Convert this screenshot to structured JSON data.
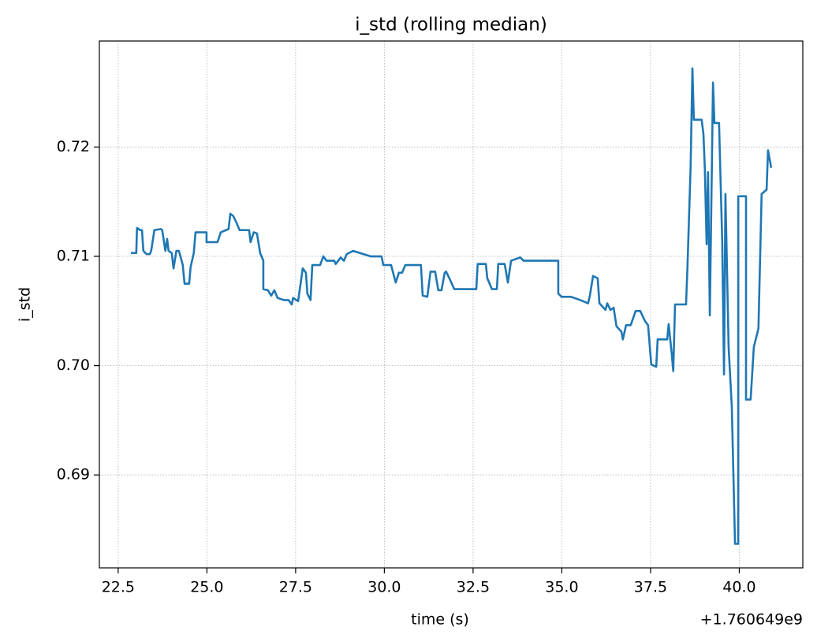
{
  "chart_data": {
    "type": "line",
    "title": "i_std (rolling median)",
    "x_label": "time (s)",
    "y_label": "i_std",
    "x_offset_label": "+1.760649e9",
    "xlim": [
      21.97,
      41.79
    ],
    "ylim": [
      0.6815,
      0.7297
    ],
    "xticks": [
      22.5,
      {
        "value": 25,
        "label": "25.0"
      },
      27.5,
      {
        "value": 30,
        "label": "30.0"
      },
      32.5,
      {
        "value": 35,
        "label": "35.0"
      },
      37.5,
      {
        "value": 40,
        "label": "40.0"
      }
    ],
    "yticks": [
      0.69,
      {
        "value": 0.7,
        "label": "0.70"
      },
      0.71,
      0.72
    ],
    "grid": true,
    "series": [
      {
        "name": "i_std",
        "color": "#1f77b4",
        "x": [
          22.86,
          23.01,
          23.03,
          23.12,
          23.17,
          23.21,
          23.3,
          23.39,
          23.43,
          23.52,
          23.7,
          23.74,
          23.83,
          23.88,
          23.92,
          24.01,
          24.06,
          24.14,
          24.21,
          24.23,
          24.32,
          24.37,
          24.5,
          24.54,
          24.63,
          24.68,
          24.99,
          24.99,
          25.3,
          25.39,
          25.61,
          25.66,
          25.74,
          25.83,
          25.92,
          26.19,
          26.23,
          26.32,
          26.41,
          26.5,
          26.59,
          26.59,
          26.72,
          26.81,
          26.9,
          26.99,
          27.17,
          27.3,
          27.39,
          27.43,
          27.57,
          27.7,
          27.79,
          27.83,
          27.92,
          27.97,
          28.19,
          28.28,
          28.37,
          28.59,
          28.63,
          28.77,
          28.86,
          28.94,
          29.12,
          29.61,
          29.92,
          29.97,
          30.19,
          30.32,
          30.41,
          30.5,
          30.59,
          31.03,
          31.08,
          31.21,
          31.3,
          31.43,
          31.52,
          31.61,
          31.7,
          31.74,
          31.83,
          31.97,
          32.59,
          32.63,
          32.86,
          32.9,
          33.03,
          33.17,
          33.21,
          33.39,
          33.48,
          33.57,
          33.83,
          33.92,
          34.72,
          34.9,
          34.9,
          34.99,
          35.26,
          35.52,
          35.74,
          35.79,
          35.88,
          36.01,
          36.06,
          36.23,
          36.28,
          36.37,
          36.46,
          36.54,
          36.68,
          36.72,
          36.81,
          36.94,
          37.08,
          37.21,
          37.34,
          37.43,
          37.52,
          37.66,
          37.7,
          37.97,
          38.01,
          38.1,
          38.14,
          38.19,
          38.5,
          38.54,
          38.63,
          38.68,
          38.72,
          38.94,
          38.99,
          39.03,
          39.08,
          39.12,
          39.17,
          39.26,
          39.3,
          39.43,
          39.52,
          39.57,
          39.61,
          39.7,
          39.79,
          39.88,
          39.97,
          39.97,
          40.19,
          40.19,
          40.32,
          40.41,
          40.54,
          40.63,
          40.77,
          40.81,
          40.9
        ],
        "values": [
          0.7103,
          0.7103,
          0.7126,
          0.7124,
          0.7124,
          0.7105,
          0.7102,
          0.7102,
          0.7105,
          0.7124,
          0.7125,
          0.7124,
          0.7105,
          0.7116,
          0.7105,
          0.7103,
          0.7089,
          0.7105,
          0.7105,
          0.7103,
          0.7092,
          0.7075,
          0.7075,
          0.709,
          0.7103,
          0.7122,
          0.7122,
          0.7113,
          0.7113,
          0.7122,
          0.7125,
          0.7139,
          0.7137,
          0.7131,
          0.7124,
          0.7124,
          0.7113,
          0.7122,
          0.7121,
          0.7103,
          0.7096,
          0.707,
          0.7069,
          0.7064,
          0.7069,
          0.7062,
          0.706,
          0.706,
          0.7056,
          0.7062,
          0.7059,
          0.7089,
          0.7085,
          0.7066,
          0.706,
          0.7092,
          0.7092,
          0.71,
          0.7096,
          0.7096,
          0.7093,
          0.7099,
          0.7096,
          0.7102,
          0.7105,
          0.71,
          0.71,
          0.7092,
          0.7092,
          0.7076,
          0.7085,
          0.7085,
          0.7092,
          0.7092,
          0.7064,
          0.7063,
          0.7086,
          0.7086,
          0.7069,
          0.7069,
          0.7085,
          0.7086,
          0.708,
          0.707,
          0.707,
          0.7093,
          0.7093,
          0.708,
          0.707,
          0.707,
          0.7093,
          0.7093,
          0.7076,
          0.7096,
          0.7099,
          0.7096,
          0.7096,
          0.7096,
          0.7066,
          0.7063,
          0.7063,
          0.706,
          0.7057,
          0.7064,
          0.7082,
          0.708,
          0.7057,
          0.7051,
          0.7057,
          0.7051,
          0.7053,
          0.7036,
          0.7031,
          0.7024,
          0.7037,
          0.7037,
          0.705,
          0.705,
          0.7041,
          0.7037,
          0.7001,
          0.6999,
          0.7024,
          0.7024,
          0.7038,
          0.701,
          0.6995,
          0.7056,
          0.7056,
          0.709,
          0.7183,
          0.7272,
          0.7225,
          0.7225,
          0.7212,
          0.718,
          0.7111,
          0.7177,
          0.7046,
          0.7259,
          0.7222,
          0.7222,
          0.7113,
          0.6992,
          0.7157,
          0.7017,
          0.6962,
          0.6837,
          0.6837,
          0.7155,
          0.7155,
          0.6969,
          0.6969,
          0.7017,
          0.7034,
          0.7157,
          0.7161,
          0.7197,
          0.7181
        ]
      }
    ]
  }
}
